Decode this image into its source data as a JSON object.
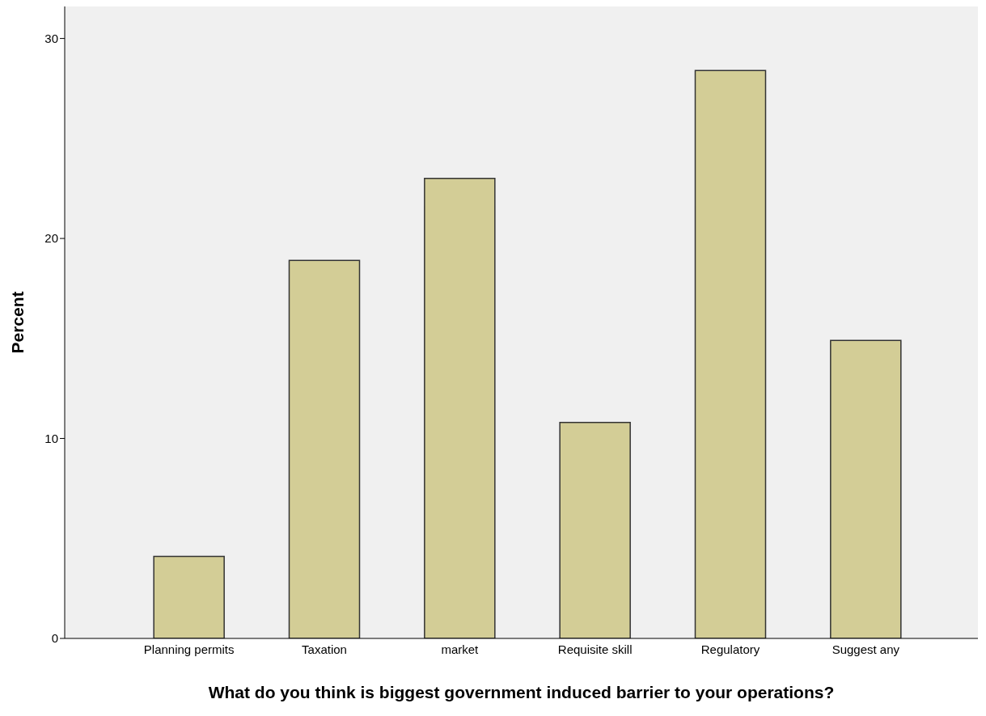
{
  "chart_data": {
    "type": "bar",
    "xlabel": "What do you think is biggest government induced barrier to your operations?",
    "ylabel": "Percent",
    "categories": [
      "Planning permits",
      "Taxation",
      "market",
      "Requisite skill",
      "Regulatory",
      "Suggest any"
    ],
    "values": [
      4.1,
      18.9,
      23.0,
      10.8,
      28.4,
      14.9
    ],
    "color": "#d3cd96",
    "ylim": [
      0,
      31.6
    ],
    "yticks": [
      0,
      10,
      20,
      30
    ],
    "grid": false
  }
}
